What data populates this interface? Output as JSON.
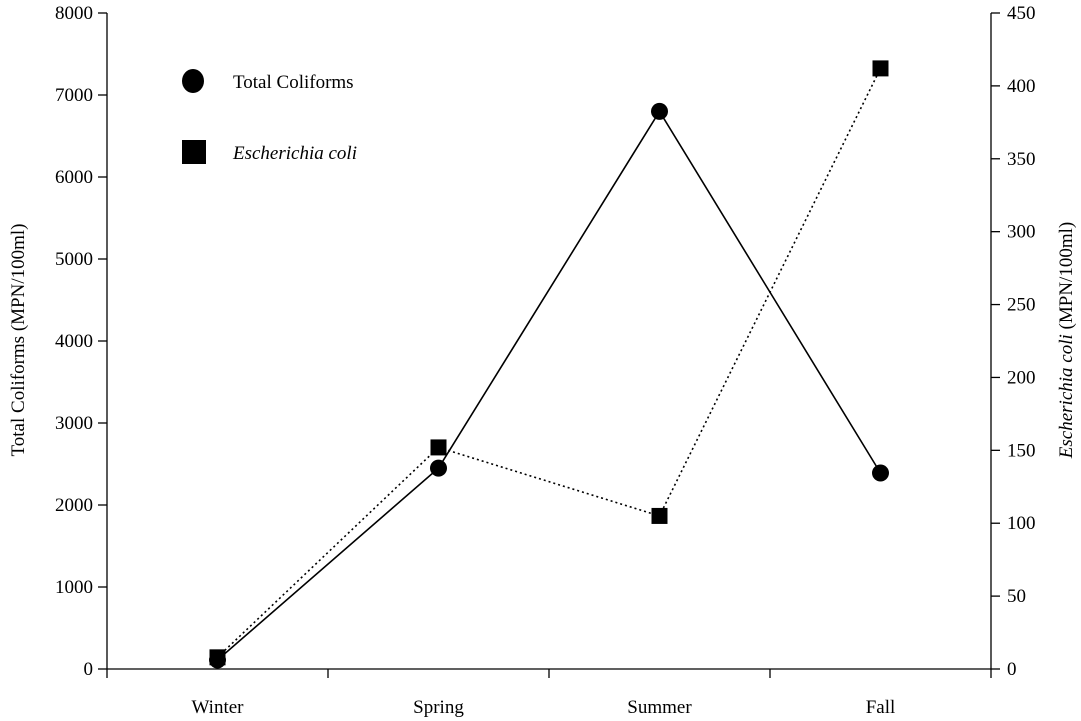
{
  "chart_data": {
    "type": "line",
    "categories": [
      "Winter",
      "Spring",
      "Summer",
      "Fall"
    ],
    "y_left": {
      "label": "Total Coliforms (MPN/100ml)",
      "ylim": [
        0,
        8000
      ],
      "ticks": [
        0,
        1000,
        2000,
        3000,
        4000,
        5000,
        6000,
        7000,
        8000
      ]
    },
    "y_right": {
      "label_italic": "Escherichia coli",
      "label_rest": " (MPN/100ml)",
      "ylim": [
        0,
        450
      ],
      "ticks": [
        0,
        50,
        100,
        150,
        200,
        250,
        300,
        350,
        400,
        450
      ]
    },
    "series": [
      {
        "name": "Total Coliforms",
        "axis": "left",
        "values": [
          110,
          2450,
          6800,
          2390
        ],
        "marker": "circle",
        "line_style": "solid",
        "name_italic": false
      },
      {
        "name": "Escherichia coli",
        "axis": "right",
        "values": [
          8,
          152,
          105,
          412
        ],
        "marker": "square",
        "line_style": "dotted",
        "name_italic": true
      }
    ],
    "legend": {
      "placement": "top-left"
    },
    "grid": false
  }
}
